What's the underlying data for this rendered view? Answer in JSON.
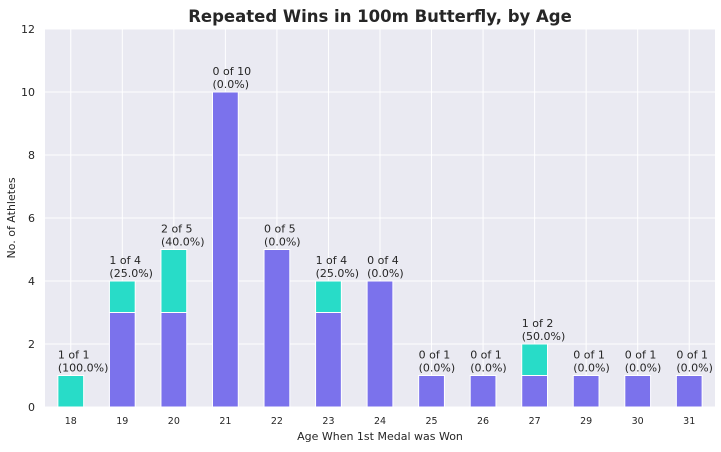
{
  "chart_data": {
    "type": "bar",
    "stacked": true,
    "title": "Repeated Wins in 100m Butterfly, by Age",
    "xlabel": "Age When 1st Medal was Won",
    "ylabel": "No. of Athletes",
    "ylim": [
      0,
      12
    ],
    "yticks": [
      "0",
      "2",
      "4",
      "6",
      "8",
      "10",
      "12"
    ],
    "grid": true,
    "categories": [
      "18",
      "19",
      "20",
      "21",
      "22",
      "23",
      "24",
      "25",
      "26",
      "27",
      "29",
      "30",
      "31"
    ],
    "series": [
      {
        "name": "",
        "color": "#7b72ec",
        "values": [
          0,
          3,
          3,
          10,
          5,
          3,
          4,
          1,
          1,
          1,
          1,
          1,
          1
        ]
      },
      {
        "name": "",
        "color": "#28dcc8",
        "values": [
          1,
          1,
          2,
          0,
          0,
          1,
          0,
          0,
          0,
          1,
          0,
          0,
          0
        ]
      }
    ],
    "annotations": [
      {
        "line1": "1 of 1",
        "line2": "(100.0%)"
      },
      {
        "line1": "1 of 4",
        "line2": "(25.0%)"
      },
      {
        "line1": "2 of 5",
        "line2": "(40.0%)"
      },
      {
        "line1": "0 of 10",
        "line2": "(0.0%)"
      },
      {
        "line1": "0 of 5",
        "line2": "(0.0%)"
      },
      {
        "line1": "1 of 4",
        "line2": "(25.0%)"
      },
      {
        "line1": "0 of 4",
        "line2": "(0.0%)"
      },
      {
        "line1": "0 of 1",
        "line2": "(0.0%)"
      },
      {
        "line1": "0 of 1",
        "line2": "(0.0%)"
      },
      {
        "line1": "1 of 2",
        "line2": "(50.0%)"
      },
      {
        "line1": "0 of 1",
        "line2": "(0.0%)"
      },
      {
        "line1": "0 of 1",
        "line2": "(0.0%)"
      },
      {
        "line1": "0 of 1",
        "line2": "(0.0%)"
      }
    ],
    "colors": {
      "background": "#ffffff",
      "plot_background": "#eaeaf2",
      "grid": "#ffffff",
      "text": "#262626"
    }
  }
}
